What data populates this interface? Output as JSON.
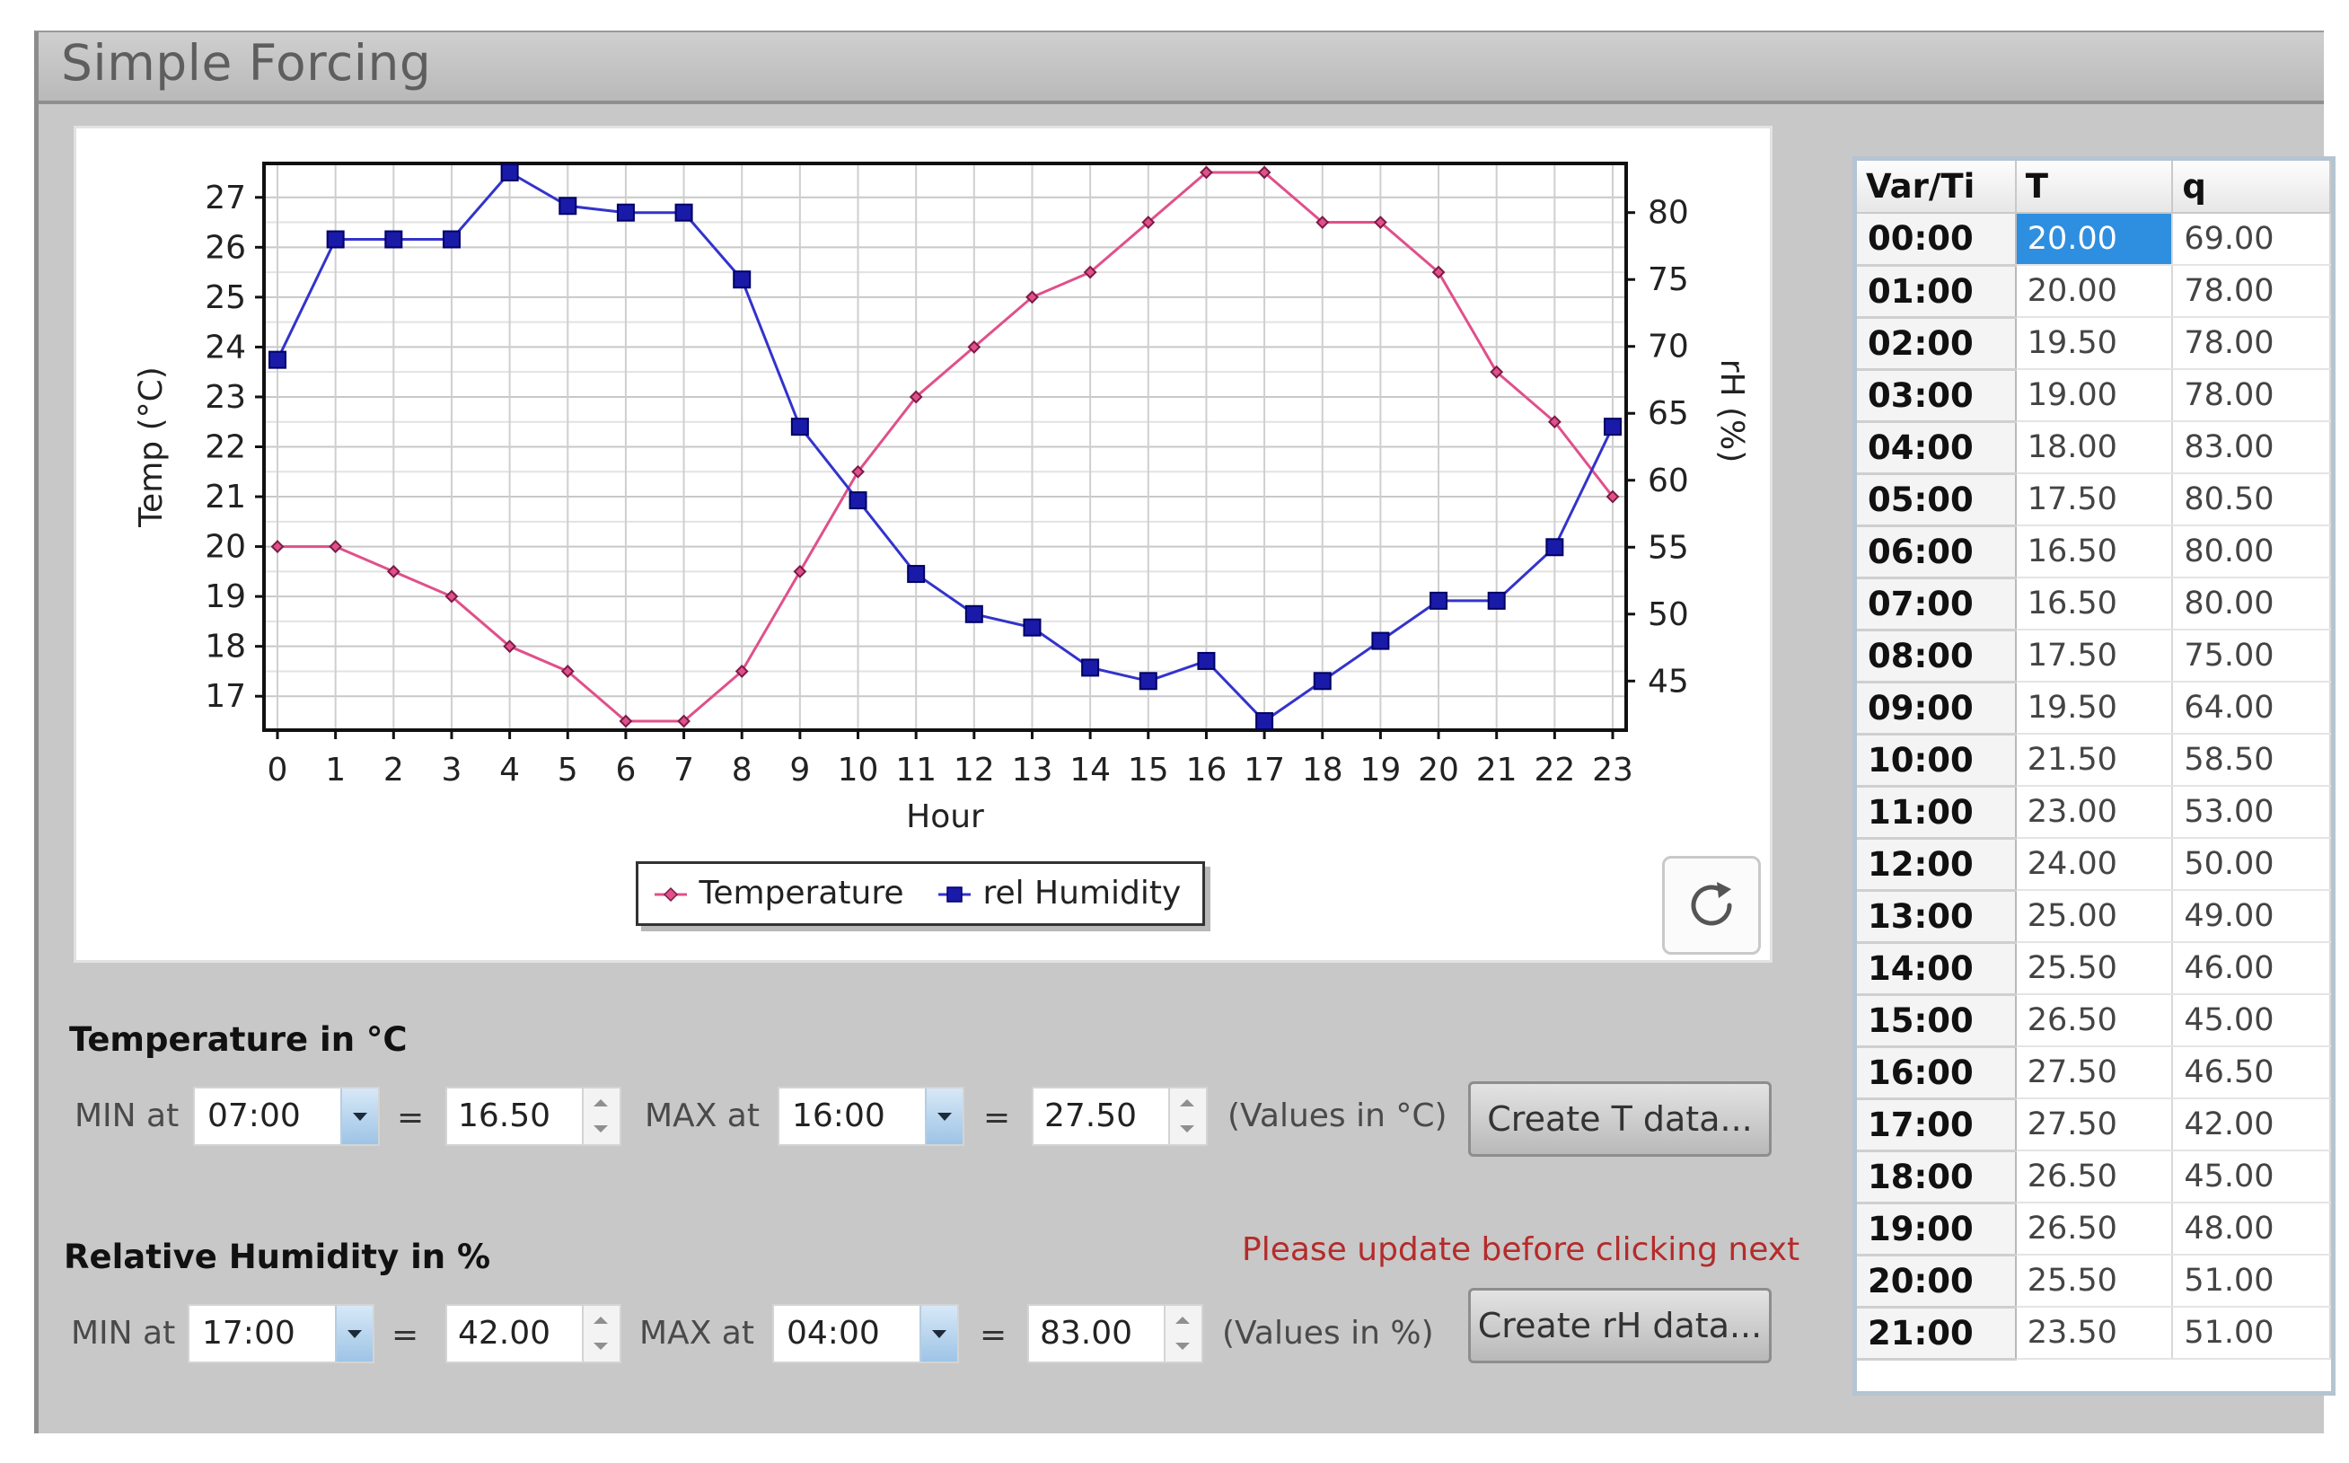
{
  "window": {
    "title": "Simple Forcing"
  },
  "chart_data": {
    "type": "line",
    "x": [
      0,
      1,
      2,
      3,
      4,
      5,
      6,
      7,
      8,
      9,
      10,
      11,
      12,
      13,
      14,
      15,
      16,
      17,
      18,
      19,
      20,
      21,
      22,
      23
    ],
    "xlabel": "Hour",
    "ylabel": "Temp (°C)",
    "y2label": "rH (%)",
    "ylim": [
      16.5,
      27.5
    ],
    "y_ticks": [
      17,
      18,
      19,
      20,
      21,
      22,
      23,
      24,
      25,
      26,
      27
    ],
    "y2lim": [
      42,
      83
    ],
    "y2_ticks": [
      45,
      50,
      55,
      60,
      65,
      70,
      75,
      80
    ],
    "grid": true,
    "legend_position": "bottom-center",
    "series": [
      {
        "name": "Temperature",
        "axis": "left",
        "color": "#e0508a",
        "marker": "diamond",
        "values": [
          20,
          20,
          19.5,
          19,
          18,
          17.5,
          16.5,
          16.5,
          17.5,
          19.5,
          21.5,
          23,
          24,
          25,
          25.5,
          26.5,
          27.5,
          27.5,
          26.5,
          26.5,
          25.5,
          23.5,
          22.5,
          21
        ]
      },
      {
        "name": "rel Humidity",
        "axis": "right",
        "color": "#3333cc",
        "marker": "square",
        "values": [
          69,
          78,
          78,
          78,
          83,
          80.5,
          80,
          80,
          75,
          64,
          58.5,
          53,
          50,
          49,
          46,
          45,
          46.5,
          42,
          45,
          48,
          51,
          51,
          55,
          64
        ]
      }
    ]
  },
  "temperature": {
    "section_title": "Temperature in °C",
    "min_label": "MIN at",
    "min_time": "07:00",
    "eq": "=",
    "min_value": "16.50",
    "max_label": "MAX at",
    "max_time": "16:00",
    "max_value": "27.50",
    "units": "(Values in °C)",
    "create_button": "Create T data..."
  },
  "humidity": {
    "section_title": "Relative Humidity in %",
    "min_label": "MIN at",
    "min_time": "17:00",
    "eq": "=",
    "min_value": "42.00",
    "max_label": "MAX at",
    "max_time": "04:00",
    "max_value": "83.00",
    "units": "(Values in %)",
    "create_button": "Create rH data..."
  },
  "warning": "Please update before clicking next",
  "table": {
    "headers": [
      "Var/Ti",
      "T",
      "q"
    ],
    "rows": [
      [
        "00:00",
        "20.00",
        "69.00"
      ],
      [
        "01:00",
        "20.00",
        "78.00"
      ],
      [
        "02:00",
        "19.50",
        "78.00"
      ],
      [
        "03:00",
        "19.00",
        "78.00"
      ],
      [
        "04:00",
        "18.00",
        "83.00"
      ],
      [
        "05:00",
        "17.50",
        "80.50"
      ],
      [
        "06:00",
        "16.50",
        "80.00"
      ],
      [
        "07:00",
        "16.50",
        "80.00"
      ],
      [
        "08:00",
        "17.50",
        "75.00"
      ],
      [
        "09:00",
        "19.50",
        "64.00"
      ],
      [
        "10:00",
        "21.50",
        "58.50"
      ],
      [
        "11:00",
        "23.00",
        "53.00"
      ],
      [
        "12:00",
        "24.00",
        "50.00"
      ],
      [
        "13:00",
        "25.00",
        "49.00"
      ],
      [
        "14:00",
        "25.50",
        "46.00"
      ],
      [
        "15:00",
        "26.50",
        "45.00"
      ],
      [
        "16:00",
        "27.50",
        "46.50"
      ],
      [
        "17:00",
        "27.50",
        "42.00"
      ],
      [
        "18:00",
        "26.50",
        "45.00"
      ],
      [
        "19:00",
        "26.50",
        "48.00"
      ],
      [
        "20:00",
        "25.50",
        "51.00"
      ],
      [
        "21:00",
        "23.50",
        "51.00"
      ]
    ]
  },
  "icons": {
    "refresh": "refresh-icon",
    "dropdown": "chevron-down-icon",
    "spinner_up": "spinner-up-icon",
    "spinner_down": "spinner-down-icon"
  }
}
